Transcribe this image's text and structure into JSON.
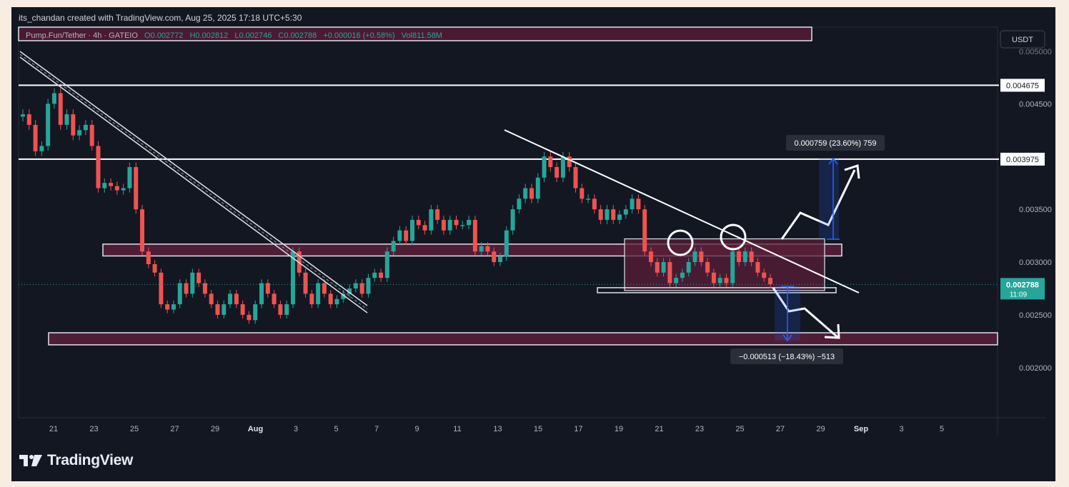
{
  "header": {
    "created_by": "its_chandan created with TradingView.com, Aug 25, 2025 17:18 UTC+5:30"
  },
  "legend": {
    "symbol": "Pump.Fun/Tether · 4h · GATEIO",
    "open": "O0.002772",
    "high": "H0.002812",
    "low": "L0.002746",
    "close": "C0.002788",
    "change": "+0.000016 (+0.58%)",
    "volume": "Vol811.58M"
  },
  "brand": {
    "logo_text": "TradingView"
  },
  "colors": {
    "background": "#131722",
    "bull": "#26a69a",
    "bear": "#ef5350",
    "zone_fill": "#5a1f3a",
    "price_label": "#26a69a",
    "measure": "#2962ff"
  },
  "chart_data": {
    "type": "candlestick",
    "currency_button": "USDT",
    "y_axis": {
      "scale": "linear",
      "ticks": [
        "0.004500",
        "0.003500",
        "0.003000",
        "0.002500",
        "0.002000"
      ],
      "top_partial_tick": "0.005000",
      "ylim": [
        0.00166,
        0.00538
      ]
    },
    "x_axis": {
      "ticks": [
        "21",
        "23",
        "25",
        "27",
        "29",
        "Aug",
        "3",
        "5",
        "7",
        "9",
        "11",
        "13",
        "15",
        "17",
        "19",
        "21",
        "23",
        "25",
        "27",
        "29",
        "Sep",
        "3",
        "5"
      ]
    },
    "current_price": {
      "value": "0.002788",
      "countdown": "11:09"
    },
    "horizontal_levels": [
      {
        "label": "0.004675",
        "value": 0.004675
      },
      {
        "label": "0.003975",
        "value": 0.003975
      }
    ],
    "zones": [
      {
        "from": 0.00317,
        "to": 0.003085,
        "start": "Jul 23",
        "end": "Aug 25"
      },
      {
        "from": 0.00233,
        "to": 0.00227,
        "start": "Jul 20",
        "end": "Sep 6"
      },
      {
        "from": 0.00322,
        "to": 0.00273,
        "start": "Aug 18",
        "end": "Aug 28"
      }
    ],
    "measurements": [
      {
        "label": "0.000759 (23.60%) 759",
        "direction": "up"
      },
      {
        "label": "−0.000513 (−18.43%) −513",
        "direction": "down"
      }
    ],
    "close_series": [
      0.0044,
      0.0043,
      0.00405,
      0.0041,
      0.0045,
      0.0046,
      0.0043,
      0.0044,
      0.0042,
      0.00425,
      0.0043,
      0.0041,
      0.0037,
      0.00375,
      0.00372,
      0.00368,
      0.0037,
      0.0039,
      0.0035,
      0.0031,
      0.00298,
      0.0029,
      0.0026,
      0.00255,
      0.0026,
      0.0028,
      0.0027,
      0.0029,
      0.0028,
      0.0027,
      0.0026,
      0.0025,
      0.0026,
      0.0027,
      0.0026,
      0.0025,
      0.00245,
      0.0026,
      0.0028,
      0.0027,
      0.0026,
      0.0025,
      0.0026,
      0.0031,
      0.0029,
      0.0027,
      0.0026,
      0.0028,
      0.0027,
      0.0026,
      0.00265,
      0.0027,
      0.00275,
      0.0028,
      0.0027,
      0.00285,
      0.0029,
      0.00285,
      0.0031,
      0.0032,
      0.0033,
      0.0032,
      0.0034,
      0.00335,
      0.0033,
      0.0035,
      0.0034,
      0.0033,
      0.0034,
      0.00335,
      0.00335,
      0.0034,
      0.0031,
      0.00315,
      0.0031,
      0.003,
      0.00305,
      0.0033,
      0.0035,
      0.0036,
      0.0037,
      0.0036,
      0.0038,
      0.004,
      0.0039,
      0.0038,
      0.004,
      0.0039,
      0.0037,
      0.0036,
      0.0036,
      0.0035,
      0.0034,
      0.0035,
      0.0034,
      0.00345,
      0.0035,
      0.0036,
      0.0035,
      0.0031,
      0.003,
      0.0029,
      0.003,
      0.0028,
      0.00285,
      0.0029,
      0.003,
      0.0031,
      0.003,
      0.0029,
      0.0028,
      0.00285,
      0.0028,
      0.0031,
      0.003,
      0.0031,
      0.003,
      0.0029,
      0.00285,
      0.00279
    ]
  }
}
